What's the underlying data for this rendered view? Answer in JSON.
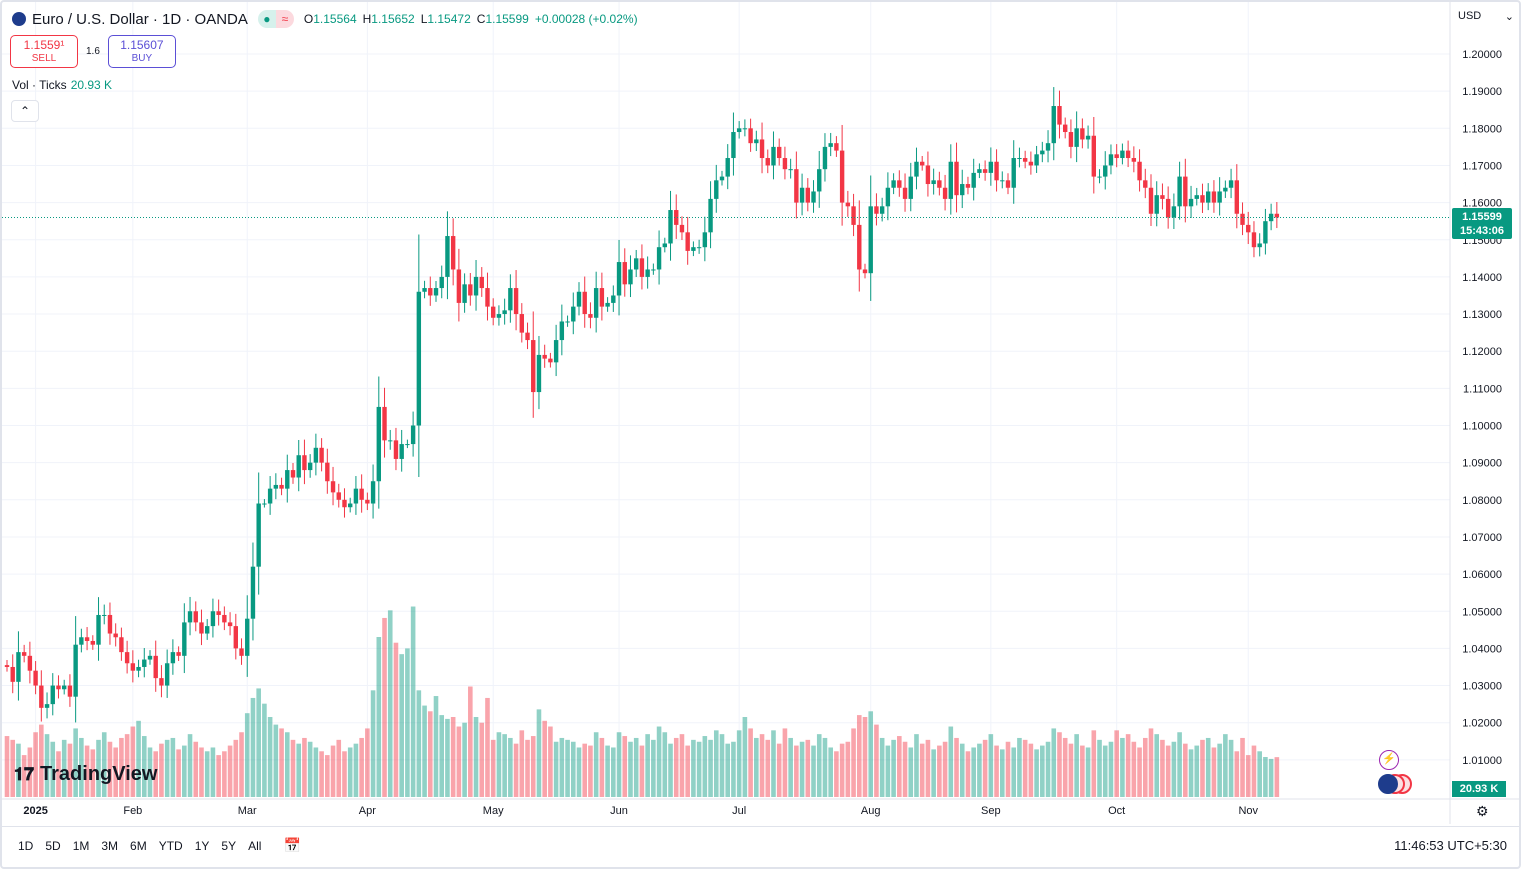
{
  "header": {
    "symbol": "Euro / U.S. Dollar · 1D · OANDA",
    "open_label": "O",
    "open": "1.15564",
    "high_label": "H",
    "high": "1.15652",
    "low_label": "L",
    "low": "1.15472",
    "close_label": "C",
    "close": "1.15599",
    "change": "+0.00028 (+0.02%)",
    "market_open_icon": "dot-icon",
    "delayed_icon": "approx-icon",
    "delayed_glyph": "≈"
  },
  "trade": {
    "sell_price": "1.1559¹",
    "sell_label": "SELL",
    "spread": "1.6",
    "buy_price": "1.15607",
    "buy_label": "BUY"
  },
  "volume_legend": {
    "label": "Vol · Ticks",
    "value": "20.93 K"
  },
  "collapse_glyph": "⌃",
  "currency": {
    "label": "USD",
    "chevron": "⌄"
  },
  "last_price": {
    "price": "1.15599",
    "countdown": "15:43:06"
  },
  "volume_tag": "20.93 K",
  "logo": "TradingView",
  "ranges": [
    "1D",
    "5D",
    "1M",
    "3M",
    "6M",
    "YTD",
    "1Y",
    "5Y",
    "All"
  ],
  "clock": "11:46:53 UTC+5:30",
  "colors": {
    "up": "#089981",
    "down": "#f23645",
    "grid": "#f0f3fa"
  },
  "chart_data": {
    "type": "candlestick",
    "ylim": [
      1.0,
      1.214
    ],
    "price_ticks": [
      "1.20000",
      "1.19000",
      "1.18000",
      "1.17000",
      "1.16000",
      "1.15000",
      "1.14000",
      "1.13000",
      "1.12000",
      "1.11000",
      "1.10000",
      "1.09000",
      "1.08000",
      "1.07000",
      "1.06000",
      "1.05000",
      "1.04000",
      "1.03000",
      "1.02000",
      "1.01000"
    ],
    "x_ticks": [
      {
        "label": "2025",
        "bar_index": 5
      },
      {
        "label": "Feb",
        "bar_index": 22
      },
      {
        "label": "Mar",
        "bar_index": 42
      },
      {
        "label": "Apr",
        "bar_index": 63
      },
      {
        "label": "May",
        "bar_index": 85
      },
      {
        "label": "Jun",
        "bar_index": 107
      },
      {
        "label": "Jul",
        "bar_index": 128
      },
      {
        "label": "Aug",
        "bar_index": 151
      },
      {
        "label": "Sep",
        "bar_index": 172
      },
      {
        "label": "Oct",
        "bar_index": 194
      },
      {
        "label": "Nov",
        "bar_index": 217
      }
    ],
    "first_open": 1.0355,
    "close": [
      1.035,
      1.031,
      1.039,
      1.038,
      1.034,
      1.03,
      1.024,
      1.025,
      1.03,
      1.029,
      1.03,
      1.027,
      1.041,
      1.043,
      1.042,
      1.041,
      1.049,
      1.049,
      1.044,
      1.043,
      1.039,
      1.036,
      1.034,
      1.035,
      1.037,
      1.038,
      1.032,
      1.03,
      1.036,
      1.039,
      1.038,
      1.047,
      1.05,
      1.047,
      1.044,
      1.046,
      1.05,
      1.049,
      1.047,
      1.046,
      1.04,
      1.038,
      1.048,
      1.062,
      1.079,
      1.079,
      1.083,
      1.084,
      1.083,
      1.088,
      1.086,
      1.092,
      1.088,
      1.09,
      1.094,
      1.09,
      1.085,
      1.082,
      1.08,
      1.078,
      1.079,
      1.083,
      1.08,
      1.079,
      1.085,
      1.105,
      1.096,
      1.096,
      1.091,
      1.095,
      1.095,
      1.1,
      1.136,
      1.137,
      1.135,
      1.137,
      1.14,
      1.151,
      1.142,
      1.133,
      1.138,
      1.135,
      1.14,
      1.137,
      1.132,
      1.129,
      1.13,
      1.131,
      1.137,
      1.13,
      1.125,
      1.123,
      1.109,
      1.119,
      1.118,
      1.117,
      1.123,
      1.128,
      1.128,
      1.132,
      1.136,
      1.13,
      1.129,
      1.137,
      1.132,
      1.133,
      1.135,
      1.144,
      1.138,
      1.142,
      1.145,
      1.14,
      1.142,
      1.142,
      1.148,
      1.149,
      1.158,
      1.154,
      1.152,
      1.147,
      1.148,
      1.148,
      1.152,
      1.161,
      1.166,
      1.167,
      1.172,
      1.179,
      1.18,
      1.18,
      1.176,
      1.177,
      1.172,
      1.17,
      1.175,
      1.172,
      1.169,
      1.169,
      1.16,
      1.164,
      1.16,
      1.163,
      1.169,
      1.175,
      1.176,
      1.174,
      1.16,
      1.159,
      1.154,
      1.142,
      1.141,
      1.159,
      1.157,
      1.159,
      1.164,
      1.166,
      1.164,
      1.161,
      1.167,
      1.171,
      1.17,
      1.165,
      1.166,
      1.164,
      1.161,
      1.171,
      1.162,
      1.165,
      1.164,
      1.168,
      1.169,
      1.168,
      1.171,
      1.166,
      1.166,
      1.164,
      1.172,
      1.172,
      1.171,
      1.17,
      1.173,
      1.174,
      1.176,
      1.186,
      1.181,
      1.179,
      1.175,
      1.18,
      1.177,
      1.178,
      1.167,
      1.167,
      1.17,
      1.173,
      1.172,
      1.174,
      1.172,
      1.171,
      1.166,
      1.164,
      1.157,
      1.162,
      1.161,
      1.156,
      1.159,
      1.167,
      1.159,
      1.161,
      1.162,
      1.16,
      1.163,
      1.16,
      1.163,
      1.164,
      1.166,
      1.157,
      1.154,
      1.152,
      1.148,
      1.149,
      1.155,
      1.157,
      1.15599
    ],
    "volume_k": [
      32,
      30,
      28,
      22,
      26,
      34,
      38,
      33,
      29,
      24,
      30,
      28,
      36,
      31,
      27,
      25,
      30,
      34,
      29,
      26,
      31,
      33,
      37,
      40,
      32,
      26,
      24,
      28,
      30,
      31,
      25,
      27,
      33,
      29,
      26,
      24,
      26,
      22,
      24,
      27,
      30,
      34,
      44,
      52,
      57,
      49,
      42,
      38,
      36,
      34,
      30,
      28,
      31,
      29,
      26,
      24,
      22,
      27,
      30,
      24,
      26,
      28,
      31,
      36,
      56,
      84,
      94,
      98,
      81,
      75,
      78,
      100,
      56,
      48,
      45,
      53,
      43,
      41,
      42,
      37,
      39,
      58,
      42,
      39,
      52,
      30,
      34,
      33,
      31,
      28,
      35,
      30,
      32,
      46,
      40,
      37,
      29,
      31,
      30,
      29,
      26,
      28,
      27,
      34,
      31,
      27,
      26,
      34,
      32,
      29,
      31,
      27,
      33,
      30,
      37,
      34,
      28,
      31,
      33,
      27,
      30,
      29,
      32,
      30,
      35,
      33,
      28,
      29,
      35,
      42,
      36,
      31,
      33,
      30,
      35,
      28,
      36,
      31,
      27,
      29,
      30,
      27,
      33,
      31,
      26,
      24,
      28,
      29,
      36,
      43,
      42,
      45,
      38,
      31,
      27,
      30,
      32,
      29,
      26,
      33,
      28,
      30,
      25,
      27,
      29,
      37,
      31,
      28,
      24,
      26,
      28,
      30,
      33,
      27,
      25,
      29,
      26,
      31,
      30,
      28,
      25,
      27,
      29,
      36,
      34,
      31,
      28,
      33,
      27,
      26,
      35,
      30,
      27,
      29,
      35,
      31,
      33,
      29,
      26,
      31,
      36,
      33,
      30,
      27,
      29,
      34,
      28,
      25,
      27,
      30,
      31,
      26,
      28,
      33,
      30,
      24,
      31,
      22,
      27,
      24,
      21,
      20,
      20.93
    ]
  }
}
